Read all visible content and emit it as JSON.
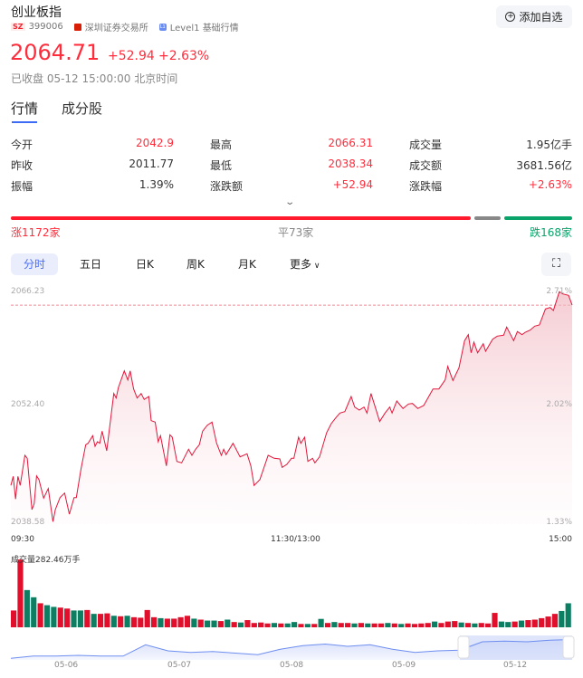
{
  "header": {
    "title": "创业板指",
    "market_badge": "SZ",
    "code": "399006",
    "exchange": "深圳证券交易所",
    "level_badge": "L1",
    "level": "Level1 基础行情",
    "add_watchlist": "添加自选"
  },
  "quote": {
    "price": "2064.71",
    "change": "+52.94",
    "change_pct": "+2.63%",
    "status": "已收盘 05-12 15:00:00 北京时间"
  },
  "tabs": [
    {
      "label": "行情",
      "active": true
    },
    {
      "label": "成分股",
      "active": false
    }
  ],
  "stats": [
    [
      {
        "label": "今开",
        "value": "2042.9",
        "color": "red"
      },
      {
        "label": "最高",
        "value": "2066.31",
        "color": "red"
      },
      {
        "label": "成交量",
        "value": "1.95亿手",
        "color": "normal"
      }
    ],
    [
      {
        "label": "昨收",
        "value": "2011.77",
        "color": "normal"
      },
      {
        "label": "最低",
        "value": "2038.34",
        "color": "red"
      },
      {
        "label": "成交额",
        "value": "3681.56亿",
        "color": "normal"
      }
    ],
    [
      {
        "label": "振幅",
        "value": "1.39%",
        "color": "normal"
      },
      {
        "label": "涨跌额",
        "value": "+52.94",
        "color": "red"
      },
      {
        "label": "涨跌幅",
        "value": "+2.63%",
        "color": "red"
      }
    ]
  ],
  "breadth": {
    "up": 1172,
    "flat": 73,
    "down": 168,
    "up_label": "涨1172家",
    "flat_label": "平73家",
    "down_label": "跌168家"
  },
  "colors": {
    "up": "#ff2d3c",
    "down": "#0aa36a",
    "flat": "#888888",
    "accent": "#4a6cf7"
  },
  "periods": [
    {
      "label": "分时",
      "active": true
    },
    {
      "label": "五日"
    },
    {
      "label": "日K"
    },
    {
      "label": "周K"
    },
    {
      "label": "月K"
    },
    {
      "label": "更多"
    }
  ],
  "chart_data": {
    "type": "line",
    "y_left_ticks": [
      "2066.23",
      "2052.40",
      "2038.58"
    ],
    "y_right_ticks": [
      "2.71%",
      "2.02%",
      "1.33%"
    ],
    "ylim": [
      2038.58,
      2066.23
    ],
    "x_ticks": [
      "09:30",
      "11:30/13:00",
      "15:00"
    ],
    "xlim_minutes": [
      0,
      240
    ],
    "reference_price": 2064.71,
    "points": [
      [
        0,
        2043.19
      ],
      [
        1,
        2044.27
      ],
      [
        2,
        2041.57
      ],
      [
        3,
        2044.27
      ],
      [
        4,
        2043.19
      ],
      [
        6,
        2046.79
      ],
      [
        7,
        2046.43
      ],
      [
        9,
        2040.31
      ],
      [
        10,
        2041.03
      ],
      [
        11,
        2044.34
      ],
      [
        12,
        2043.91
      ],
      [
        14,
        2041.68
      ],
      [
        16,
        2042.83
      ],
      [
        18,
        2038.87
      ],
      [
        19,
        2040.31
      ],
      [
        21,
        2041.75
      ],
      [
        23,
        2042.29
      ],
      [
        25,
        2039.77
      ],
      [
        27,
        2041.75
      ],
      [
        28,
        2041.75
      ],
      [
        30,
        2045.17
      ],
      [
        32,
        2048.05
      ],
      [
        33,
        2048.23
      ],
      [
        35,
        2049.13
      ],
      [
        36,
        2047.87
      ],
      [
        37,
        2048.41
      ],
      [
        38,
        2048.23
      ],
      [
        39,
        2049.67
      ],
      [
        41,
        2047.33
      ],
      [
        44,
        2054.17
      ],
      [
        45,
        2053.63
      ],
      [
        46,
        2054.89
      ],
      [
        48.5,
        2056.87
      ],
      [
        50,
        2055.79
      ],
      [
        51,
        2056.87
      ],
      [
        52.5,
        2054.71
      ],
      [
        54,
        2053.63
      ],
      [
        55.7,
        2054.17
      ],
      [
        57,
        2053.45
      ],
      [
        59,
        2053.81
      ],
      [
        60,
        2050.93
      ],
      [
        61.7,
        2050.75
      ],
      [
        63,
        2048.41
      ],
      [
        64,
        2049.13
      ],
      [
        66.5,
        2045.53
      ],
      [
        68,
        2049.24
      ],
      [
        69,
        2048.95
      ],
      [
        71,
        2046.07
      ],
      [
        73,
        2045.89
      ],
      [
        74,
        2046.43
      ],
      [
        76,
        2047.51
      ],
      [
        77.4,
        2046.79
      ],
      [
        79,
        2047.51
      ],
      [
        80.6,
        2048.05
      ],
      [
        82,
        2049.67
      ],
      [
        84,
        2050.39
      ],
      [
        86,
        2050.75
      ],
      [
        88,
        2048.23
      ],
      [
        90,
        2046.79
      ],
      [
        91,
        2047.51
      ],
      [
        92,
        2046.86
      ],
      [
        95,
        2048.23
      ],
      [
        98,
        2046.61
      ],
      [
        101,
        2046.97
      ],
      [
        102.6,
        2045.53
      ],
      [
        104,
        2043.19
      ],
      [
        106.5,
        2043.91
      ],
      [
        110,
        2046.79
      ],
      [
        112.6,
        2046.43
      ],
      [
        115,
        2046.36
      ],
      [
        116,
        2045.35
      ],
      [
        118,
        2045.71
      ],
      [
        120,
        2046.43
      ],
      [
        121,
        2046.43
      ],
      [
        123,
        2048.95
      ],
      [
        124,
        2048.23
      ],
      [
        125.6,
        2048.95
      ],
      [
        127,
        2046.07
      ],
      [
        129,
        2046.43
      ],
      [
        130,
        2045.89
      ],
      [
        132,
        2046.61
      ],
      [
        135,
        2049.49
      ],
      [
        137,
        2050.57
      ],
      [
        139,
        2051.29
      ],
      [
        140.7,
        2051.83
      ],
      [
        142.8,
        2052.01
      ],
      [
        145.5,
        2053.81
      ],
      [
        147,
        2052.55
      ],
      [
        149,
        2052.19
      ],
      [
        151,
        2052.55
      ],
      [
        152.3,
        2051.83
      ],
      [
        154,
        2054.17
      ],
      [
        156,
        2052.37
      ],
      [
        157.7,
        2050.82
      ],
      [
        160,
        2051.83
      ],
      [
        162,
        2052.55
      ],
      [
        163,
        2051.83
      ],
      [
        165,
        2053.27
      ],
      [
        167.7,
        2052.37
      ],
      [
        170,
        2052.91
      ],
      [
        171.7,
        2052.98
      ],
      [
        174,
        2052.37
      ],
      [
        176.5,
        2052.73
      ],
      [
        180.5,
        2054.71
      ],
      [
        183,
        2054.71
      ],
      [
        185.7,
        2055.79
      ],
      [
        186.8,
        2057.41
      ],
      [
        189,
        2055.72
      ],
      [
        191.6,
        2057.23
      ],
      [
        194,
        2060.47
      ],
      [
        195.6,
        2061.19
      ],
      [
        196.8,
        2059.03
      ],
      [
        198,
        2060.29
      ],
      [
        199.6,
        2059.03
      ],
      [
        202,
        2060.11
      ],
      [
        203,
        2059.21
      ],
      [
        206,
        2060.65
      ],
      [
        208,
        2061.01
      ],
      [
        210.7,
        2061.12
      ],
      [
        212,
        2062.09
      ],
      [
        215,
        2060.47
      ],
      [
        216.6,
        2061.55
      ],
      [
        218.6,
        2061.19
      ],
      [
        220,
        2061.48
      ],
      [
        222,
        2061.73
      ],
      [
        224,
        2062.2
      ],
      [
        226,
        2062.34
      ],
      [
        228.6,
        2064.25
      ],
      [
        230.6,
        2064.43
      ],
      [
        232,
        2064.07
      ],
      [
        234.5,
        2066.31
      ],
      [
        236,
        2066.05
      ],
      [
        238.5,
        2065.87
      ],
      [
        240,
        2064.71
      ]
    ]
  },
  "volume": {
    "label": "成交量282.46万手",
    "unit": "万手",
    "bars": [
      [
        70,
        "r"
      ],
      [
        282,
        "r"
      ],
      [
        155,
        "g"
      ],
      [
        125,
        "g"
      ],
      [
        100,
        "r"
      ],
      [
        92,
        "g"
      ],
      [
        85,
        "g"
      ],
      [
        82,
        "r"
      ],
      [
        78,
        "r"
      ],
      [
        70,
        "g"
      ],
      [
        70,
        "g"
      ],
      [
        72,
        "r"
      ],
      [
        56,
        "g"
      ],
      [
        56,
        "r"
      ],
      [
        58,
        "r"
      ],
      [
        48,
        "g"
      ],
      [
        46,
        "r"
      ],
      [
        48,
        "g"
      ],
      [
        42,
        "r"
      ],
      [
        40,
        "r"
      ],
      [
        72,
        "r"
      ],
      [
        42,
        "r"
      ],
      [
        38,
        "g"
      ],
      [
        36,
        "r"
      ],
      [
        36,
        "r"
      ],
      [
        42,
        "r"
      ],
      [
        48,
        "r"
      ],
      [
        36,
        "g"
      ],
      [
        32,
        "r"
      ],
      [
        28,
        "g"
      ],
      [
        28,
        "g"
      ],
      [
        26,
        "r"
      ],
      [
        32,
        "g"
      ],
      [
        22,
        "r"
      ],
      [
        20,
        "g"
      ],
      [
        30,
        "r"
      ],
      [
        18,
        "r"
      ],
      [
        20,
        "r"
      ],
      [
        16,
        "r"
      ],
      [
        18,
        "g"
      ],
      [
        16,
        "r"
      ],
      [
        16,
        "g"
      ],
      [
        22,
        "g"
      ],
      [
        14,
        "r"
      ],
      [
        14,
        "g"
      ],
      [
        14,
        "r"
      ],
      [
        35,
        "g"
      ],
      [
        18,
        "r"
      ],
      [
        22,
        "g"
      ],
      [
        18,
        "r"
      ],
      [
        18,
        "r"
      ],
      [
        16,
        "g"
      ],
      [
        18,
        "r"
      ],
      [
        16,
        "g"
      ],
      [
        16,
        "r"
      ],
      [
        16,
        "r"
      ],
      [
        18,
        "g"
      ],
      [
        16,
        "r"
      ],
      [
        14,
        "g"
      ],
      [
        16,
        "r"
      ],
      [
        14,
        "r"
      ],
      [
        16,
        "r"
      ],
      [
        18,
        "r"
      ],
      [
        24,
        "g"
      ],
      [
        18,
        "r"
      ],
      [
        24,
        "r"
      ],
      [
        26,
        "r"
      ],
      [
        20,
        "g"
      ],
      [
        18,
        "r"
      ],
      [
        16,
        "g"
      ],
      [
        18,
        "r"
      ],
      [
        16,
        "r"
      ],
      [
        60,
        "r"
      ],
      [
        24,
        "g"
      ],
      [
        22,
        "g"
      ],
      [
        24,
        "r"
      ],
      [
        28,
        "g"
      ],
      [
        30,
        "r"
      ],
      [
        32,
        "r"
      ],
      [
        38,
        "r"
      ],
      [
        45,
        "r"
      ],
      [
        56,
        "r"
      ],
      [
        68,
        "g"
      ],
      [
        100,
        "g"
      ]
    ]
  },
  "navigator": {
    "dates": [
      "05-06",
      "05-07",
      "05-08",
      "05-09",
      "05-12"
    ],
    "levels": [
      2,
      5,
      5,
      6,
      5,
      5,
      20,
      12,
      10,
      11,
      9,
      7,
      14,
      19,
      21,
      18,
      20,
      14,
      10,
      12,
      13,
      24,
      25,
      24,
      26,
      27
    ],
    "window": [
      0.8,
      1.0
    ]
  }
}
